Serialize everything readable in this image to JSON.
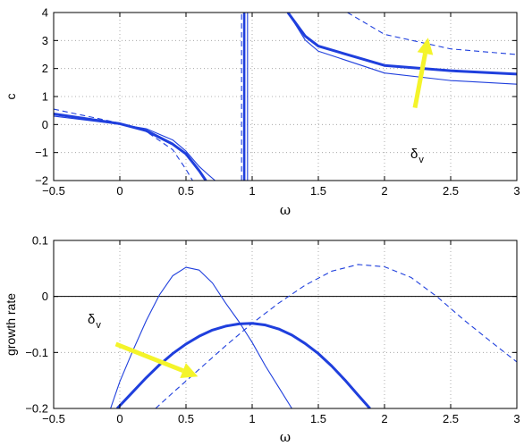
{
  "colors": {
    "series": "#1f3fdd",
    "arrow": "#f4f42a",
    "grid": "#9a9a9a",
    "axis": "#000000"
  },
  "chart_data": [
    {
      "type": "line",
      "title": "",
      "xlabel": "ω",
      "ylabel": "c",
      "xlim": [
        -0.5,
        3
      ],
      "ylim": [
        -2,
        4
      ],
      "xticks": [
        -0.5,
        0,
        0.5,
        1,
        1.5,
        2,
        2.5,
        3
      ],
      "yticks": [
        -2,
        -1,
        0,
        1,
        2,
        3,
        4
      ],
      "xtick_labels": [
        "−0.5",
        "0",
        "0.5",
        "1",
        "1.5",
        "2",
        "2.5",
        "3"
      ],
      "ytick_labels": [
        "−2",
        "−1",
        "0",
        "1",
        "2",
        "3",
        "4"
      ],
      "grid": true,
      "annotation": {
        "text": "δ",
        "subscript": "v",
        "arrow_from": [
          2.23,
          0.6
        ],
        "arrow_to": [
          2.33,
          3.1
        ]
      },
      "series": [
        {
          "style": "thin-solid",
          "segments": [
            {
              "x": [
                -0.5,
                0,
                0.2,
                0.4,
                0.5,
                0.6,
                0.67,
                0.72
              ],
              "y": [
                0.3,
                0.01,
                -0.15,
                -0.55,
                -0.95,
                -1.5,
                -1.8,
                -2
              ]
            },
            {
              "x": [
                1.27,
                1.4,
                1.5,
                2,
                2.5,
                3
              ],
              "y": [
                4,
                3.02,
                2.62,
                1.84,
                1.57,
                1.44
              ]
            }
          ]
        },
        {
          "style": "thick-solid",
          "segments": [
            {
              "x": [
                -0.5,
                0,
                0.2,
                0.4,
                0.5,
                0.55,
                0.6,
                0.65
              ],
              "y": [
                0.38,
                0.03,
                -0.22,
                -0.7,
                -1.05,
                -1.35,
                -1.65,
                -2
              ]
            },
            {
              "x": [
                1.27,
                1.4,
                1.5,
                2,
                2.5,
                3
              ],
              "y": [
                4,
                3.16,
                2.8,
                2.11,
                1.92,
                1.8
              ]
            }
          ]
        },
        {
          "style": "dashed",
          "segments": [
            {
              "x": [
                -0.5,
                0,
                0.2,
                0.4,
                0.45,
                0.5,
                0.55
              ],
              "y": [
                0.55,
                0.05,
                -0.25,
                -0.9,
                -1.25,
                -1.6,
                -2
              ]
            },
            {
              "x": [
                1.72,
                2,
                2.5,
                3
              ],
              "y": [
                4,
                3.22,
                2.7,
                2.5
              ]
            }
          ]
        },
        {
          "style": "vline-thick",
          "segments": [
            {
              "x": [
                0.94,
                0.94
              ],
              "y": [
                -2,
                4
              ]
            }
          ]
        },
        {
          "style": "vline-thin",
          "segments": [
            {
              "x": [
                0.965,
                0.965
              ],
              "y": [
                -2,
                4
              ]
            }
          ]
        },
        {
          "style": "vline-dashed",
          "segments": [
            {
              "x": [
                0.92,
                0.92
              ],
              "y": [
                -2,
                4
              ]
            }
          ]
        }
      ]
    },
    {
      "type": "line",
      "title": "",
      "xlabel": "ω",
      "ylabel": "growth rate",
      "xlim": [
        -0.5,
        3
      ],
      "ylim": [
        -0.2,
        0.1
      ],
      "xticks": [
        -0.5,
        0,
        0.5,
        1,
        1.5,
        2,
        2.5,
        3
      ],
      "yticks": [
        -0.2,
        -0.1,
        0,
        0.1
      ],
      "xtick_labels": [
        "−0.5",
        "0",
        "0.5",
        "1",
        "1.5",
        "2",
        "2.5",
        "3"
      ],
      "ytick_labels": [
        "−0.2",
        "−0.1",
        "0",
        "0.1"
      ],
      "grid": true,
      "zero_line": 0,
      "annotation": {
        "text": "δ",
        "subscript": "v",
        "arrow_from": [
          -0.03,
          -0.085
        ],
        "arrow_to": [
          0.59,
          -0.143
        ]
      },
      "series": [
        {
          "style": "thin-solid",
          "segments": [
            {
              "x": [
                -0.07,
                0,
                0.1,
                0.2,
                0.3,
                0.4,
                0.5,
                0.6,
                0.7,
                0.8,
                0.9,
                1,
                1.1,
                1.2,
                1.3
              ],
              "y": [
                -0.2,
                -0.152,
                -0.096,
                -0.043,
                0.003,
                0.037,
                0.052,
                0.047,
                0.024,
                -0.012,
                -0.045,
                -0.082,
                -0.124,
                -0.162,
                -0.2
              ]
            }
          ]
        },
        {
          "style": "thick-solid",
          "segments": [
            {
              "x": [
                -0.02,
                0.1,
                0.2,
                0.3,
                0.4,
                0.5,
                0.6,
                0.7,
                0.8,
                0.9,
                1,
                1.1,
                1.2,
                1.3,
                1.4,
                1.5,
                1.6,
                1.7,
                1.8,
                1.89
              ],
              "y": [
                -0.2,
                -0.17,
                -0.145,
                -0.122,
                -0.102,
                -0.085,
                -0.071,
                -0.06,
                -0.053,
                -0.049,
                -0.048,
                -0.051,
                -0.058,
                -0.069,
                -0.084,
                -0.102,
                -0.124,
                -0.149,
                -0.176,
                -0.2
              ]
            }
          ]
        },
        {
          "style": "dashed",
          "segments": [
            {
              "x": [
                0.27,
                0.4,
                0.6,
                0.8,
                1,
                1.2,
                1.4,
                1.6,
                1.8,
                2,
                2.2,
                2.4,
                2.6,
                2.8,
                3
              ],
              "y": [
                -0.2,
                -0.172,
                -0.13,
                -0.088,
                -0.048,
                -0.012,
                0.02,
                0.045,
                0.057,
                0.053,
                0.034,
                -0.001,
                -0.042,
                -0.08,
                -0.117
              ]
            }
          ]
        }
      ]
    }
  ]
}
